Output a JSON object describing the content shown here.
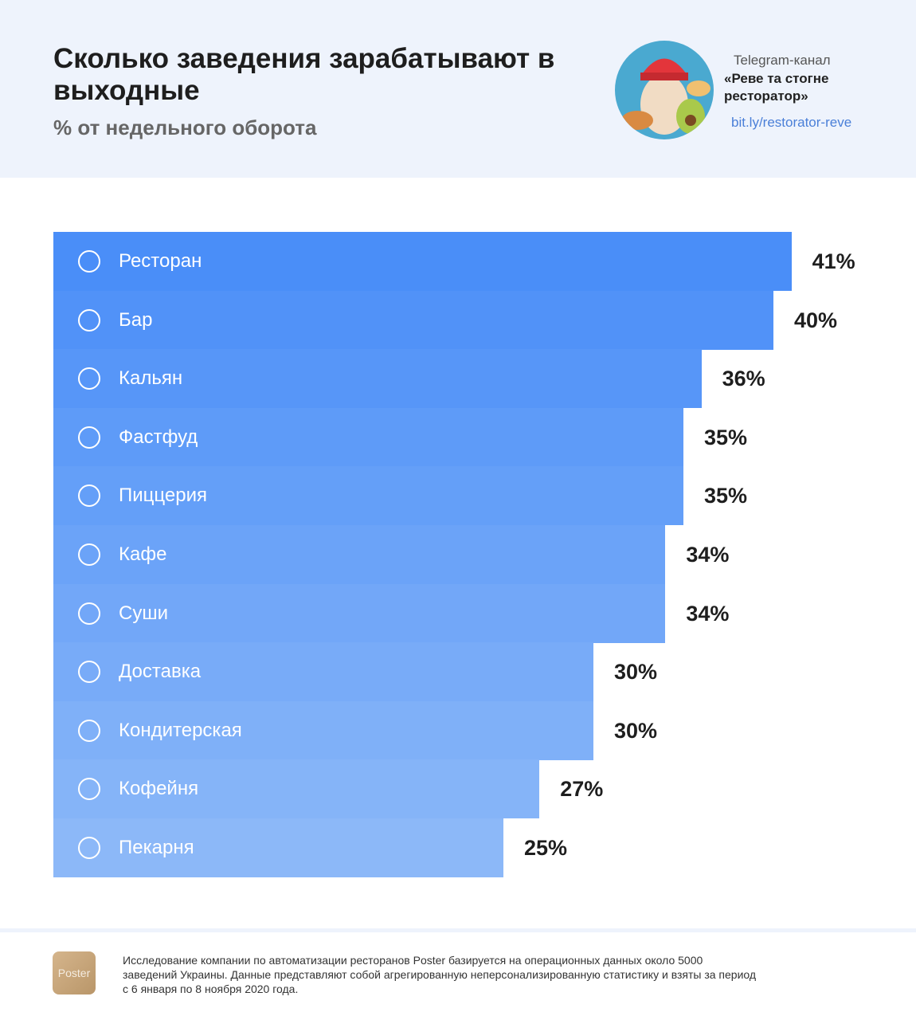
{
  "header": {
    "title": "Сколько заведения зарабатывают в выходные",
    "subtitle": "% от недельного оборота",
    "telegram_label": "Telegram-канал",
    "channel_name": "«Реве та стогне ресторатор»",
    "link": "bit.ly/restorator-reve"
  },
  "chart_data": {
    "type": "bar",
    "orientation": "horizontal",
    "title": "Сколько заведения зарабатывают в выходные",
    "subtitle": "% от недельного оборота",
    "categories": [
      "Ресторан",
      "Бар",
      "Кальян",
      "Фастфуд",
      "Пиццерия",
      "Кафе",
      "Суши",
      "Доставка",
      "Кондитерская",
      "Кофейня",
      "Пекарня"
    ],
    "values": [
      41,
      40,
      36,
      35,
      35,
      34,
      34,
      30,
      30,
      27,
      25
    ],
    "value_labels": [
      "41%",
      "40%",
      "36%",
      "35%",
      "35%",
      "34%",
      "34%",
      "30%",
      "30%",
      "27%",
      "25%"
    ],
    "icons": [
      "fork-knife-icon",
      "wine-glass-icon",
      "hookah-icon",
      "burger-icon",
      "pizza-icon",
      "coffee-cup-icon",
      "sushi-icon",
      "truck-icon",
      "candy-icon",
      "cupcake-icon",
      "croissant-icon"
    ],
    "colors": {
      "top": "#4a8ef8",
      "bottom": "#8cb8f8"
    },
    "grid": false,
    "legend": "none"
  },
  "footer": {
    "logo": "Poster",
    "text": "Исследование компании по автоматизации ресторанов Poster базируется на операционных данных около 5000 заведений Украины. Данные представляют собой агрегированную неперсонализированную статистику и взяты за период с 6 января по 8 ноября 2020 года."
  }
}
